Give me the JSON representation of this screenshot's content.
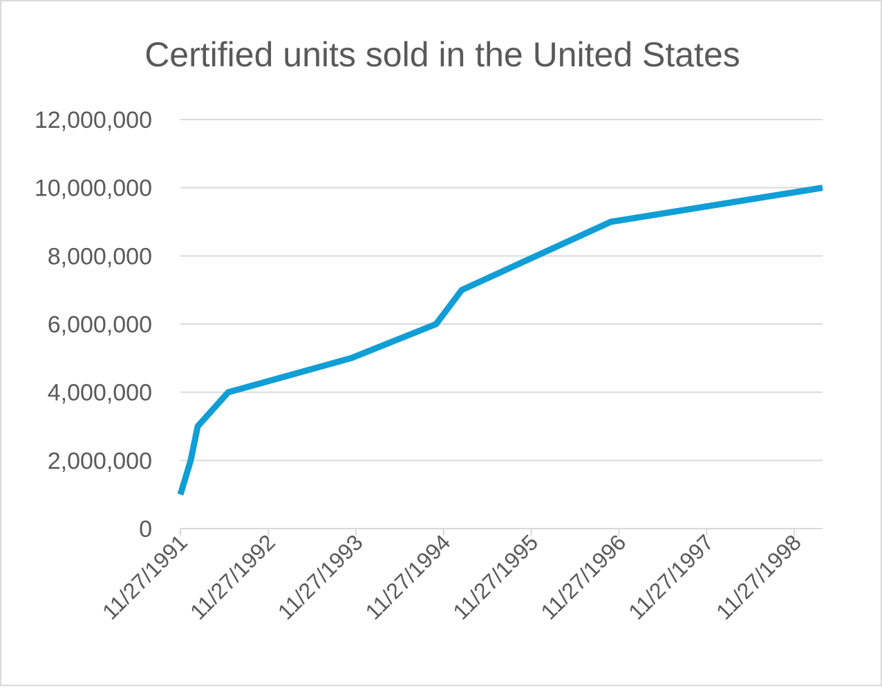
{
  "chart_data": {
    "type": "line",
    "title": "Certified units sold in the United States",
    "xlabel": "",
    "ylabel": "",
    "x_axis_type": "date",
    "xlim": [
      "1991-11-27",
      "1999-03-25"
    ],
    "ylim": [
      0,
      12000000
    ],
    "y_ticks": [
      0,
      2000000,
      4000000,
      6000000,
      8000000,
      10000000,
      12000000
    ],
    "y_tick_labels": [
      "0",
      "2,000,000",
      "4,000,000",
      "6,000,000",
      "8,000,000",
      "10,000,000",
      "12,000,000"
    ],
    "x_ticks": [
      "1991-11-27",
      "1992-11-27",
      "1993-11-27",
      "1994-11-27",
      "1995-11-27",
      "1996-11-27",
      "1997-11-27",
      "1998-11-27"
    ],
    "x_tick_labels": [
      "11/27/1991",
      "11/27/1992",
      "11/27/1993",
      "11/27/1994",
      "11/27/1995",
      "11/27/1996",
      "11/27/1997",
      "11/27/1998"
    ],
    "grid": "horizontal",
    "legend": "none",
    "series": [
      {
        "color": "#0f9ed5",
        "x": [
          "1991-11-27",
          "1992-01-09",
          "1992-02-07",
          "1992-06-13",
          "1993-11-07",
          "1994-10-27",
          "1995-02-11",
          "1996-10-24",
          "1999-03-25"
        ],
        "y": [
          1000000,
          2000000,
          3000000,
          4000000,
          5000000,
          6000000,
          7000000,
          9000000,
          10000000
        ]
      }
    ]
  }
}
